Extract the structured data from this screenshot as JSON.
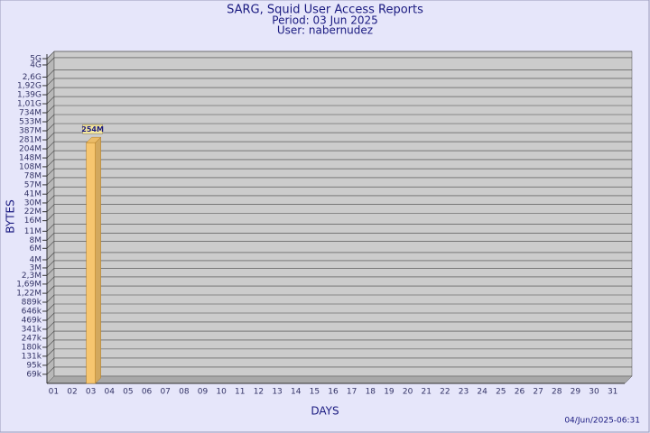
{
  "chart_data": {
    "type": "bar",
    "title": "SARG, Squid User Access Reports",
    "subtitle": "Period: 03 Jun 2025",
    "user": "User: nabernudez",
    "x_label": "DAYS",
    "y_label": "BYTES",
    "footer": "04/Jun/2025-06:31",
    "log_scale": true,
    "grid": true,
    "color": "#f7c66f",
    "categories": [
      "01",
      "02",
      "03",
      "04",
      "05",
      "06",
      "07",
      "08",
      "09",
      "10",
      "11",
      "12",
      "13",
      "14",
      "15",
      "16",
      "17",
      "18",
      "19",
      "20",
      "21",
      "22",
      "23",
      "24",
      "25",
      "26",
      "27",
      "28",
      "29",
      "30",
      "31"
    ],
    "values": [
      null,
      null,
      254000000,
      null,
      null,
      null,
      null,
      null,
      null,
      null,
      null,
      null,
      null,
      null,
      null,
      null,
      null,
      null,
      null,
      null,
      null,
      null,
      null,
      null,
      null,
      null,
      null,
      null,
      null,
      null,
      null
    ],
    "value_labels": [
      null,
      null,
      "254M",
      null,
      null,
      null,
      null,
      null,
      null,
      null,
      null,
      null,
      null,
      null,
      null,
      null,
      null,
      null,
      null,
      null,
      null,
      null,
      null,
      null,
      null,
      null,
      null,
      null,
      null,
      null,
      null
    ],
    "ylim": [
      50000,
      5000000000
    ],
    "yticks": [
      {
        "value": 69000,
        "label": "69k"
      },
      {
        "value": 95000,
        "label": "95k"
      },
      {
        "value": 131000,
        "label": "131k"
      },
      {
        "value": 180000,
        "label": "180k"
      },
      {
        "value": 247000,
        "label": "247k"
      },
      {
        "value": 341000,
        "label": "341k"
      },
      {
        "value": 469000,
        "label": "469k"
      },
      {
        "value": 646000,
        "label": "646k"
      },
      {
        "value": 889000,
        "label": "889k"
      },
      {
        "value": 1220000,
        "label": "1,22M"
      },
      {
        "value": 1690000,
        "label": "1,69M"
      },
      {
        "value": 2300000,
        "label": "2,3M"
      },
      {
        "value": 3000000,
        "label": "3M"
      },
      {
        "value": 4000000,
        "label": "4M"
      },
      {
        "value": 6000000,
        "label": "6M"
      },
      {
        "value": 8000000,
        "label": "8M"
      },
      {
        "value": 11000000,
        "label": "11M"
      },
      {
        "value": 16000000,
        "label": "16M"
      },
      {
        "value": 22000000,
        "label": "22M"
      },
      {
        "value": 30000000,
        "label": "30M"
      },
      {
        "value": 41000000,
        "label": "41M"
      },
      {
        "value": 57000000,
        "label": "57M"
      },
      {
        "value": 78000000,
        "label": "78M"
      },
      {
        "value": 108000000,
        "label": "108M"
      },
      {
        "value": 148000000,
        "label": "148M"
      },
      {
        "value": 204000000,
        "label": "204M"
      },
      {
        "value": 281000000,
        "label": "281M"
      },
      {
        "value": 387000000,
        "label": "387M"
      },
      {
        "value": 533000000,
        "label": "533M"
      },
      {
        "value": 734000000,
        "label": "734M"
      },
      {
        "value": 1010000000,
        "label": "1,01G"
      },
      {
        "value": 1390000000,
        "label": "1,39G"
      },
      {
        "value": 1920000000,
        "label": "1,92G"
      },
      {
        "value": 2600000000,
        "label": "2,6G"
      },
      {
        "value": 4000000000,
        "label": "4G"
      },
      {
        "value": 5000000000,
        "label": "5G"
      }
    ]
  }
}
